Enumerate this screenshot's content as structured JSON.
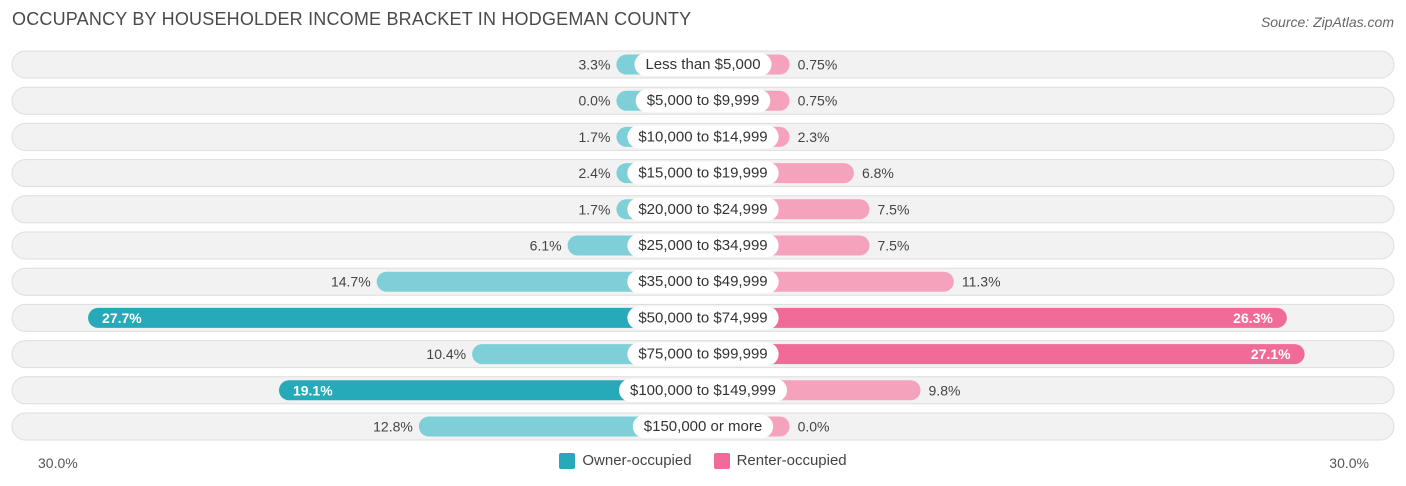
{
  "header": {
    "title": "OCCUPANCY BY HOUSEHOLDER INCOME BRACKET IN HODGEMAN COUNTY",
    "source": "Source: ZipAtlas.com"
  },
  "axis": {
    "left_label": "30.0%",
    "right_label": "30.0%"
  },
  "legend": {
    "owner": "Owner-occupied",
    "renter": "Renter-occupied"
  },
  "colors": {
    "owner_light": "#7fcfd8",
    "owner_dark": "#26aab9",
    "renter_light": "#f5a3bd",
    "renter_dark": "#f06b97",
    "row_bg": "#f2f2f2",
    "row_border": "#dedede"
  },
  "chart_data": {
    "type": "bar",
    "orientation": "horizontal-diverging",
    "max": 30.0,
    "categories": [
      "Less than $5,000",
      "$5,000 to $9,999",
      "$10,000 to $14,999",
      "$15,000 to $19,999",
      "$20,000 to $24,999",
      "$25,000 to $34,999",
      "$35,000 to $49,999",
      "$50,000 to $74,999",
      "$75,000 to $99,999",
      "$100,000 to $149,999",
      "$150,000 or more"
    ],
    "series": [
      {
        "name": "Owner-occupied",
        "values": [
          3.3,
          0.0,
          1.7,
          2.4,
          1.7,
          6.1,
          14.7,
          27.7,
          10.4,
          19.1,
          12.8
        ],
        "labels": [
          "3.3%",
          "0.0%",
          "1.7%",
          "2.4%",
          "1.7%",
          "6.1%",
          "14.7%",
          "27.7%",
          "10.4%",
          "19.1%",
          "12.8%"
        ]
      },
      {
        "name": "Renter-occupied",
        "values": [
          0.75,
          0.75,
          2.3,
          6.8,
          7.5,
          7.5,
          11.3,
          26.3,
          27.1,
          9.8,
          0.0
        ],
        "labels": [
          "0.75%",
          "0.75%",
          "2.3%",
          "6.8%",
          "7.5%",
          "7.5%",
          "11.3%",
          "26.3%",
          "27.1%",
          "9.8%",
          "0.0%"
        ]
      }
    ]
  }
}
